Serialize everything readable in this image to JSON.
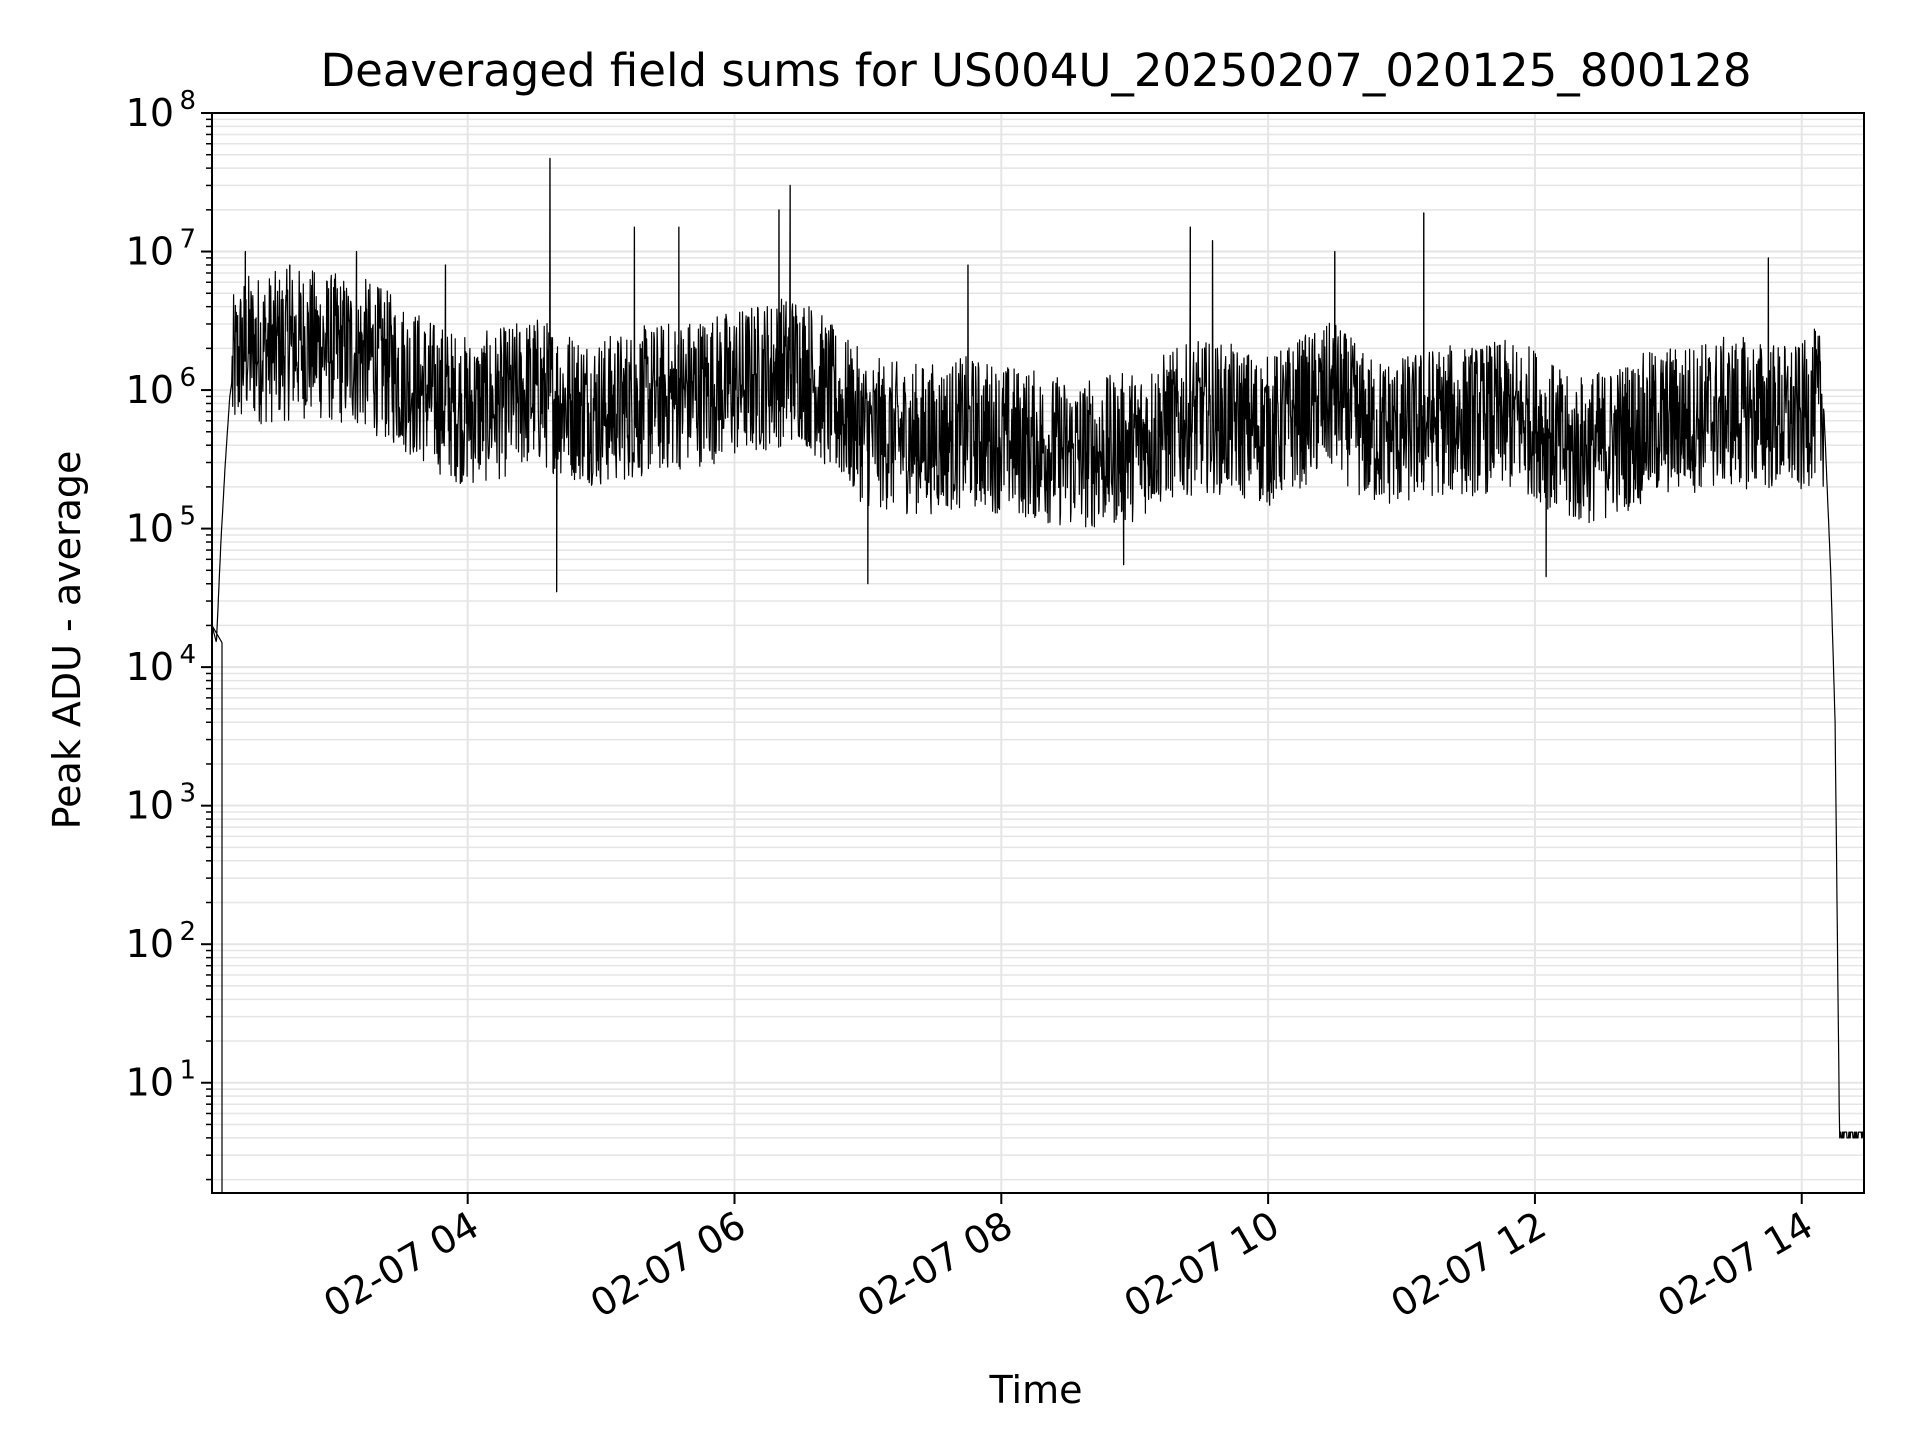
{
  "chart_data": {
    "type": "line",
    "title": "Deaveraged field sums for US004U_20250207_020125_800128",
    "xlabel": "Time",
    "ylabel": "Peak ADU - average",
    "yscale": "log",
    "ylim": [
      1.6,
      100000000
    ],
    "xlim": [
      "2025-02-07 02:05",
      "2025-02-07 14:28"
    ],
    "grid": true,
    "line_color": "#000000",
    "grid_color": "#e5e5e5",
    "x_ticks": [
      {
        "value": "2025-02-07 04:00",
        "label": "02-07 04"
      },
      {
        "value": "2025-02-07 06:00",
        "label": "02-07 06"
      },
      {
        "value": "2025-02-07 08:00",
        "label": "02-07 08"
      },
      {
        "value": "2025-02-07 10:00",
        "label": "02-07 10"
      },
      {
        "value": "2025-02-07 12:00",
        "label": "02-07 12"
      },
      {
        "value": "2025-02-07 14:00",
        "label": "02-07 14"
      }
    ],
    "y_ticks": [
      {
        "value": 10,
        "base": "10",
        "exp": "1"
      },
      {
        "value": 100,
        "base": "10",
        "exp": "2"
      },
      {
        "value": 1000,
        "base": "10",
        "exp": "3"
      },
      {
        "value": 10000,
        "base": "10",
        "exp": "4"
      },
      {
        "value": 100000,
        "base": "10",
        "exp": "5"
      },
      {
        "value": 1000000,
        "base": "10",
        "exp": "6"
      },
      {
        "value": 10000000,
        "base": "10",
        "exp": "7"
      },
      {
        "value": 100000000,
        "base": "10",
        "exp": "8"
      }
    ],
    "series": [
      {
        "points": [
          [
            "2025-02-07 02:05",
            20000
          ],
          [
            "2025-02-07 02:07",
            15000
          ],
          [
            "2025-02-07 02:09",
            80000
          ],
          [
            "2025-02-07 02:11",
            300000
          ],
          [
            "2025-02-07 02:13",
            900000
          ],
          [
            "2025-02-07 02:15",
            1500000
          ],
          [
            "2025-02-07 02:20",
            2000000
          ],
          [
            "2025-02-07 02:30",
            2000000
          ],
          [
            "2025-02-07 02:45",
            2200000
          ],
          [
            "2025-02-07 03:00",
            2000000
          ],
          [
            "2025-02-07 03:15",
            1800000
          ],
          [
            "2025-02-07 03:30",
            1300000
          ],
          [
            "2025-02-07 03:45",
            900000
          ],
          [
            "2025-02-07 04:00",
            700000
          ],
          [
            "2025-02-07 04:15",
            800000
          ],
          [
            "2025-02-07 04:30",
            1000000
          ],
          [
            "2025-02-07 04:45",
            800000
          ],
          [
            "2025-02-07 05:00",
            700000
          ],
          [
            "2025-02-07 05:15",
            800000
          ],
          [
            "2025-02-07 05:30",
            900000
          ],
          [
            "2025-02-07 05:45",
            1000000
          ],
          [
            "2025-02-07 06:00",
            1100000
          ],
          [
            "2025-02-07 06:15",
            1300000
          ],
          [
            "2025-02-07 06:30",
            1500000
          ],
          [
            "2025-02-07 06:45",
            800000
          ],
          [
            "2025-02-07 07:00",
            500000
          ],
          [
            "2025-02-07 07:15",
            450000
          ],
          [
            "2025-02-07 07:30",
            450000
          ],
          [
            "2025-02-07 07:45",
            500000
          ],
          [
            "2025-02-07 08:00",
            450000
          ],
          [
            "2025-02-07 08:15",
            400000
          ],
          [
            "2025-02-07 08:30",
            350000
          ],
          [
            "2025-02-07 08:45",
            350000
          ],
          [
            "2025-02-07 09:00",
            400000
          ],
          [
            "2025-02-07 09:15",
            550000
          ],
          [
            "2025-02-07 09:30",
            650000
          ],
          [
            "2025-02-07 09:45",
            600000
          ],
          [
            "2025-02-07 10:00",
            500000
          ],
          [
            "2025-02-07 10:15",
            700000
          ],
          [
            "2025-02-07 10:30",
            900000
          ],
          [
            "2025-02-07 10:45",
            500000
          ],
          [
            "2025-02-07 11:00",
            500000
          ],
          [
            "2025-02-07 11:15",
            600000
          ],
          [
            "2025-02-07 11:30",
            600000
          ],
          [
            "2025-02-07 11:45",
            650000
          ],
          [
            "2025-02-07 12:00",
            600000
          ],
          [
            "2025-02-07 12:15",
            350000
          ],
          [
            "2025-02-07 12:30",
            400000
          ],
          [
            "2025-02-07 12:45",
            500000
          ],
          [
            "2025-02-07 13:00",
            600000
          ],
          [
            "2025-02-07 13:15",
            650000
          ],
          [
            "2025-02-07 13:30",
            700000
          ],
          [
            "2025-02-07 13:45",
            650000
          ],
          [
            "2025-02-07 14:00",
            600000
          ],
          [
            "2025-02-07 14:05",
            800000
          ],
          [
            "2025-02-07 14:10",
            700000
          ],
          [
            "2025-02-07 14:13",
            50000
          ],
          [
            "2025-02-07 14:15",
            4000
          ],
          [
            "2025-02-07 14:17",
            4
          ],
          [
            "2025-02-07 14:28",
            4
          ]
        ]
      }
    ],
    "spikes": [
      [
        "2025-02-07 02:20",
        10000000
      ],
      [
        "2025-02-07 02:40",
        8000000
      ],
      [
        "2025-02-07 03:10",
        10000000
      ],
      [
        "2025-02-07 03:50",
        8000000
      ],
      [
        "2025-02-07 04:37",
        47000000
      ],
      [
        "2025-02-07 04:40",
        35000
      ],
      [
        "2025-02-07 05:15",
        15000000
      ],
      [
        "2025-02-07 05:35",
        15000000
      ],
      [
        "2025-02-07 06:20",
        20000000
      ],
      [
        "2025-02-07 06:25",
        30000000
      ],
      [
        "2025-02-07 07:00",
        40000
      ],
      [
        "2025-02-07 07:45",
        8000000
      ],
      [
        "2025-02-07 08:55",
        55000
      ],
      [
        "2025-02-07 09:25",
        15000000
      ],
      [
        "2025-02-07 09:35",
        12000000
      ],
      [
        "2025-02-07 10:30",
        10000000
      ],
      [
        "2025-02-07 11:10",
        19000000
      ],
      [
        "2025-02-07 12:05",
        45000
      ],
      [
        "2025-02-07 13:45",
        9000000
      ]
    ]
  }
}
